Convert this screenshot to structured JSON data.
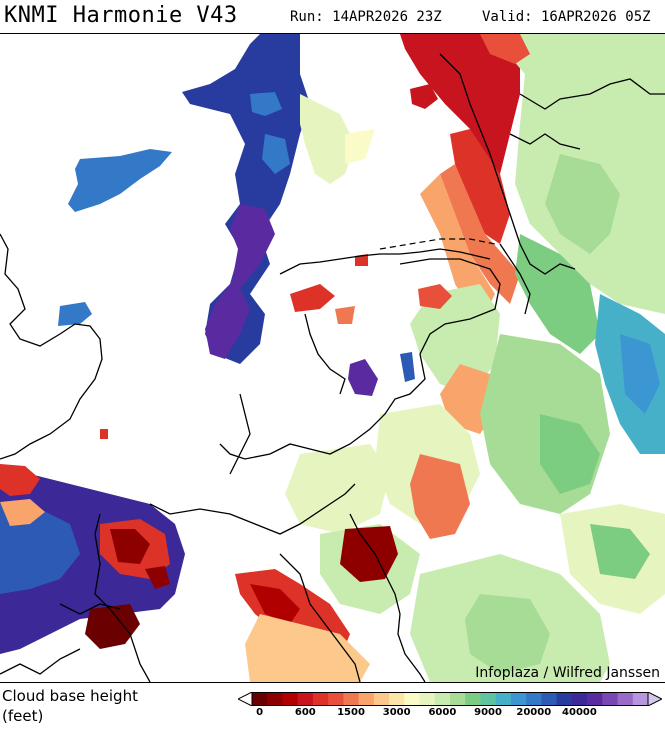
{
  "header": {
    "title": "KNMI Harmonie V43",
    "run": "Run: 14APR2026 23Z",
    "valid": "Valid: 16APR2026 05Z"
  },
  "map": {
    "credit": "Infoplaza / Wilfred Janssen"
  },
  "legend": {
    "label_line1": "Cloud base height",
    "label_line2": "(feet)",
    "tick_labels": [
      "0",
      "600",
      "1500",
      "3000",
      "6000",
      "9000",
      "20000",
      "40000"
    ],
    "colors": [
      "#6b0000",
      "#8e0000",
      "#b00000",
      "#c8141e",
      "#dc3228",
      "#e8503c",
      "#f07850",
      "#f8a46a",
      "#fcc88c",
      "#fde4a8",
      "#fbfbc8",
      "#e6f5c0",
      "#c8ebb0",
      "#a6dc96",
      "#7ccc82",
      "#5ec3a0",
      "#46b0c8",
      "#3c96d2",
      "#3478c8",
      "#2c5ab4",
      "#283ca0",
      "#3c2896",
      "#5a2aa0",
      "#7a46b4",
      "#9a6ac8",
      "#b696dc"
    ]
  }
}
